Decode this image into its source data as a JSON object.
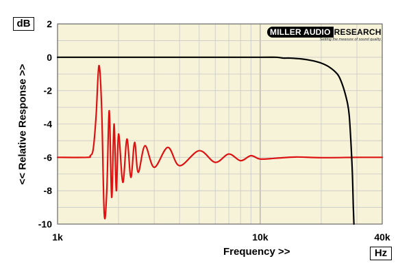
{
  "header": {
    "y_unit": "dB",
    "x_unit": "Hz"
  },
  "logo": {
    "name_part1": "MILLER AUDIO",
    "name_part2": "RESEARCH",
    "tagline": "Setting the measure of sound quality"
  },
  "chart_data": {
    "type": "line",
    "xlabel": "Frequency >>",
    "ylabel": "<< Relative Response >>",
    "xscale": "log",
    "xlim": [
      1000,
      40000
    ],
    "ylim": [
      -10,
      2
    ],
    "x_ticks": [
      {
        "value": 1000,
        "label": "1k"
      },
      {
        "value": 10000,
        "label": "10k"
      },
      {
        "value": 40000,
        "label": "40k"
      }
    ],
    "y_ticks": [
      2,
      0,
      -2,
      -4,
      -6,
      -8,
      -10
    ],
    "grid": true,
    "colors": {
      "background": "#f7f3d8",
      "grid": "#c8c8c8",
      "black_series": "#000000",
      "red_series": "#dd1111"
    },
    "series": [
      {
        "color": "#000000",
        "x": [
          1000,
          5000,
          10000,
          12000,
          13000,
          14000,
          16000,
          18000,
          20000,
          22000,
          24000,
          25000,
          26000,
          27000,
          27500,
          28000,
          28500,
          28800,
          29000
        ],
        "y": [
          0,
          0,
          0,
          0,
          -0.05,
          -0.05,
          -0.1,
          -0.2,
          -0.35,
          -0.6,
          -1.0,
          -1.4,
          -2.0,
          -2.8,
          -3.5,
          -5.0,
          -7.0,
          -9.0,
          -10
        ]
      },
      {
        "color": "#dd1111",
        "x": [
          1000,
          1400,
          1450,
          1500,
          1550,
          1600,
          1650,
          1700,
          1750,
          1800,
          1850,
          1900,
          1950,
          2000,
          2100,
          2200,
          2300,
          2400,
          2500,
          2700,
          3000,
          3500,
          4000,
          5000,
          6000,
          7000,
          8000,
          9000,
          10000,
          12000,
          15000,
          20000,
          30000,
          40000
        ],
        "y": [
          -6,
          -6,
          -5.9,
          -5.5,
          -3.5,
          -0.5,
          -3,
          -9.4,
          -8,
          -3.2,
          -8.4,
          -4,
          -8,
          -4.6,
          -7.5,
          -4.9,
          -7.2,
          -5.1,
          -6.9,
          -5.3,
          -6.6,
          -5.4,
          -6.5,
          -5.6,
          -6.3,
          -5.8,
          -6.2,
          -5.9,
          -6.1,
          -6.05,
          -5.98,
          -6.02,
          -6,
          -6
        ]
      }
    ]
  }
}
